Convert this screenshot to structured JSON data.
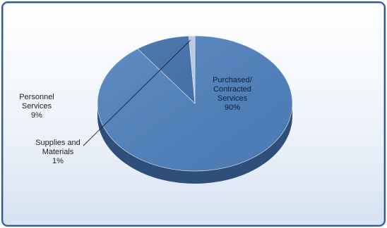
{
  "chart_data": {
    "type": "pie",
    "title": "",
    "categories": [
      "Purchased/ Contracted Services",
      "Personnel Services",
      "Supplies and Materials"
    ],
    "values": [
      90,
      9,
      1
    ],
    "labels": [
      {
        "lines": [
          "Purchased/",
          "Contracted",
          "Services"
        ],
        "percent": "90%"
      },
      {
        "lines": [
          "Personnel",
          "Services"
        ],
        "percent": "9%"
      },
      {
        "lines": [
          "Supplies and",
          "Materials"
        ],
        "percent": "1%"
      }
    ],
    "colors": {
      "top": [
        "#4f81bd",
        "#3f6ea8",
        "#b9cde6"
      ],
      "side": [
        "#2f4f7a",
        "#27456d",
        "#8aa4c6"
      ]
    },
    "style": "3d"
  }
}
